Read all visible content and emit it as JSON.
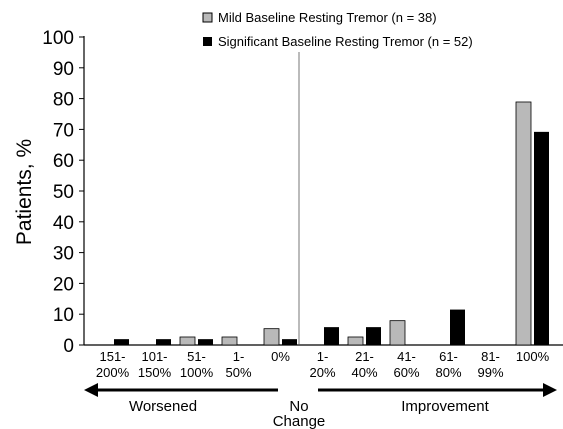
{
  "chart_data": {
    "type": "bar",
    "title": "",
    "xlabel": "",
    "ylabel": "Patients, %",
    "ylim": [
      0,
      100
    ],
    "yticks": [
      0,
      10,
      20,
      30,
      40,
      50,
      60,
      70,
      80,
      90,
      100
    ],
    "grid": false,
    "legend_position": "top-right",
    "categories": [
      [
        "151-",
        "200%"
      ],
      [
        "101-",
        "150%"
      ],
      [
        "51-",
        "100%"
      ],
      [
        "1-",
        "50%"
      ],
      [
        "0%"
      ],
      [
        "1-",
        "20%"
      ],
      [
        "21-",
        "40%"
      ],
      [
        "41-",
        "60%"
      ],
      [
        "61-",
        "80%"
      ],
      [
        "81-",
        "99%"
      ],
      [
        "100%"
      ]
    ],
    "series": [
      {
        "name": "Mild Baseline Resting Tremor (n = 38)",
        "color": "#b9b9b9",
        "values": [
          0,
          0,
          2.6,
          2.6,
          5.3,
          0,
          2.6,
          7.9,
          0,
          0,
          78.9
        ]
      },
      {
        "name": "Significant Baseline Resting Tremor (n = 52)",
        "color": "#000000",
        "values": [
          1.9,
          1.9,
          1.9,
          0,
          1.9,
          5.8,
          5.8,
          0,
          11.5,
          0,
          69.2
        ]
      }
    ],
    "annotations": {
      "worsened": "Worsened",
      "no_change_line1": "No",
      "no_change_line2": "Change",
      "improvement": "Improvement"
    }
  }
}
